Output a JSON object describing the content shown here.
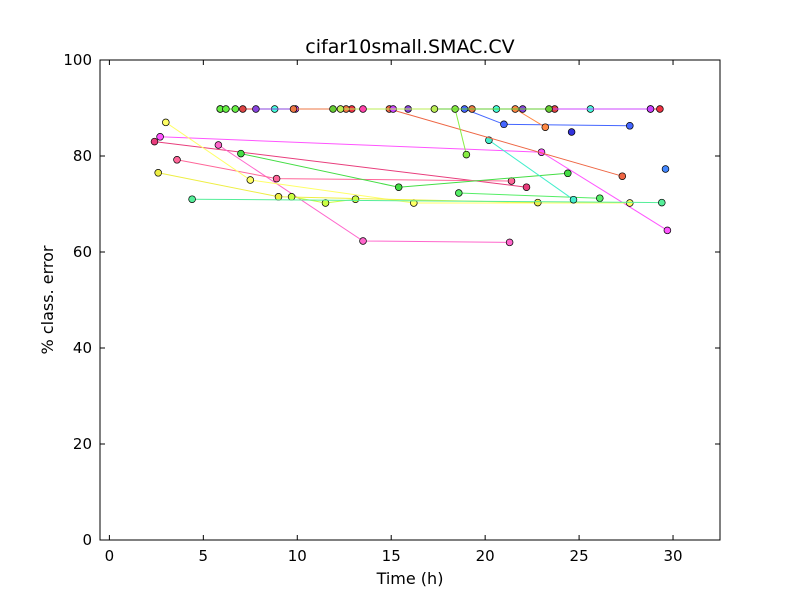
{
  "chart_data": {
    "type": "scatter",
    "title": "cifar10small.SMAC.CV",
    "xlabel": "Time (h)",
    "ylabel": "% class. error",
    "xlim": [
      -0.5,
      32.5
    ],
    "ylim": [
      0,
      100
    ],
    "xticks": [
      "0",
      "5",
      "10",
      "15",
      "20",
      "25",
      "30"
    ],
    "yticks": [
      "0",
      "20",
      "40",
      "60",
      "80",
      "100"
    ],
    "grid": false,
    "legend": "none",
    "series": [
      {
        "color": "#ff55ff",
        "x": [
          2.7,
          23.0,
          29.7
        ],
        "y": [
          84.0,
          80.8,
          64.5
        ]
      },
      {
        "color": "#e83d7c",
        "x": [
          2.4,
          22.2
        ],
        "y": [
          83.0,
          73.5
        ]
      },
      {
        "color": "#ff66cc",
        "x": [
          5.8,
          13.5,
          21.3
        ],
        "y": [
          82.3,
          62.3,
          62.0
        ]
      },
      {
        "color": "#ff6699",
        "x": [
          3.6,
          8.9,
          21.4
        ],
        "y": [
          79.2,
          75.3,
          74.8
        ]
      },
      {
        "color": "#ffff66",
        "x": [
          3.0,
          7.5,
          16.2,
          27.7
        ],
        "y": [
          87.0,
          75.0,
          70.2,
          70.2
        ]
      },
      {
        "color": "#eeee44",
        "x": [
          2.6,
          9.0,
          22.8
        ],
        "y": [
          76.5,
          71.5,
          70.3
        ]
      },
      {
        "color": "#ccff44",
        "x": [
          9.7,
          11.5,
          13.1
        ],
        "y": [
          71.5,
          70.2,
          71.0
        ]
      },
      {
        "color": "#44dd44",
        "x": [
          7.0,
          15.4,
          24.4
        ],
        "y": [
          80.5,
          73.5,
          76.4
        ]
      },
      {
        "color": "#55ee66",
        "x": [
          18.6,
          26.1
        ],
        "y": [
          72.3,
          71.2
        ]
      },
      {
        "color": "#55ee99",
        "x": [
          4.4,
          29.4
        ],
        "y": [
          71.0,
          70.3
        ]
      },
      {
        "color": "#44eecc",
        "x": [
          20.2,
          24.7
        ],
        "y": [
          83.3,
          70.9
        ]
      },
      {
        "color": "#44ffdd",
        "x": [
          8.8,
          20.6,
          25.6
        ],
        "y": [
          89.8,
          89.8,
          89.8
        ]
      },
      {
        "color": "#4466ff",
        "x": [
          18.9,
          21.0,
          27.7
        ],
        "y": [
          89.8,
          86.6,
          86.3
        ]
      },
      {
        "color": "#3333dd",
        "x": [
          24.6
        ],
        "y": [
          85.0
        ]
      },
      {
        "color": "#4488ff",
        "x": [
          29.6
        ],
        "y": [
          77.3
        ]
      },
      {
        "color": "#ee6644",
        "x": [
          14.9,
          27.3
        ],
        "y": [
          89.8,
          75.8
        ]
      },
      {
        "color": "#ff8844",
        "x": [
          21.6,
          23.2
        ],
        "y": [
          89.8,
          86.0
        ]
      },
      {
        "color": "#88ee44",
        "x": [
          18.4,
          19.0
        ],
        "y": [
          89.8,
          80.3
        ]
      },
      {
        "color": "#ff3399",
        "x": [
          5.9,
          28.8
        ],
        "y": [
          89.8,
          89.8
        ]
      },
      {
        "color": "#ee3344",
        "x": [
          12.9,
          29.3
        ],
        "y": [
          89.8,
          89.8
        ]
      },
      {
        "color": "#66ee44",
        "x": [
          5.9,
          6.2,
          6.7
        ],
        "y": [
          89.8,
          89.8,
          89.8
        ]
      },
      {
        "color": "#dd4444",
        "x": [
          7.1,
          23.7
        ],
        "y": [
          89.8,
          89.8
        ]
      },
      {
        "color": "#8844dd",
        "x": [
          7.8,
          15.9,
          22.0
        ],
        "y": [
          89.8,
          89.8,
          89.8
        ]
      },
      {
        "color": "#cc44ff",
        "x": [
          9.9,
          15.1,
          28.8
        ],
        "y": [
          89.8,
          89.8,
          89.8
        ]
      },
      {
        "color": "#ee7744",
        "x": [
          9.8,
          12.6,
          19.3
        ],
        "y": [
          89.8,
          89.8,
          89.8
        ]
      },
      {
        "color": "#66cc33",
        "x": [
          11.9,
          23.4
        ],
        "y": [
          89.8,
          89.8
        ]
      },
      {
        "color": "#bbee55",
        "x": [
          12.3,
          17.3
        ],
        "y": [
          89.8,
          89.8
        ]
      },
      {
        "color": "#ff44aa",
        "x": [
          13.5
        ],
        "y": [
          89.8
        ]
      }
    ]
  }
}
